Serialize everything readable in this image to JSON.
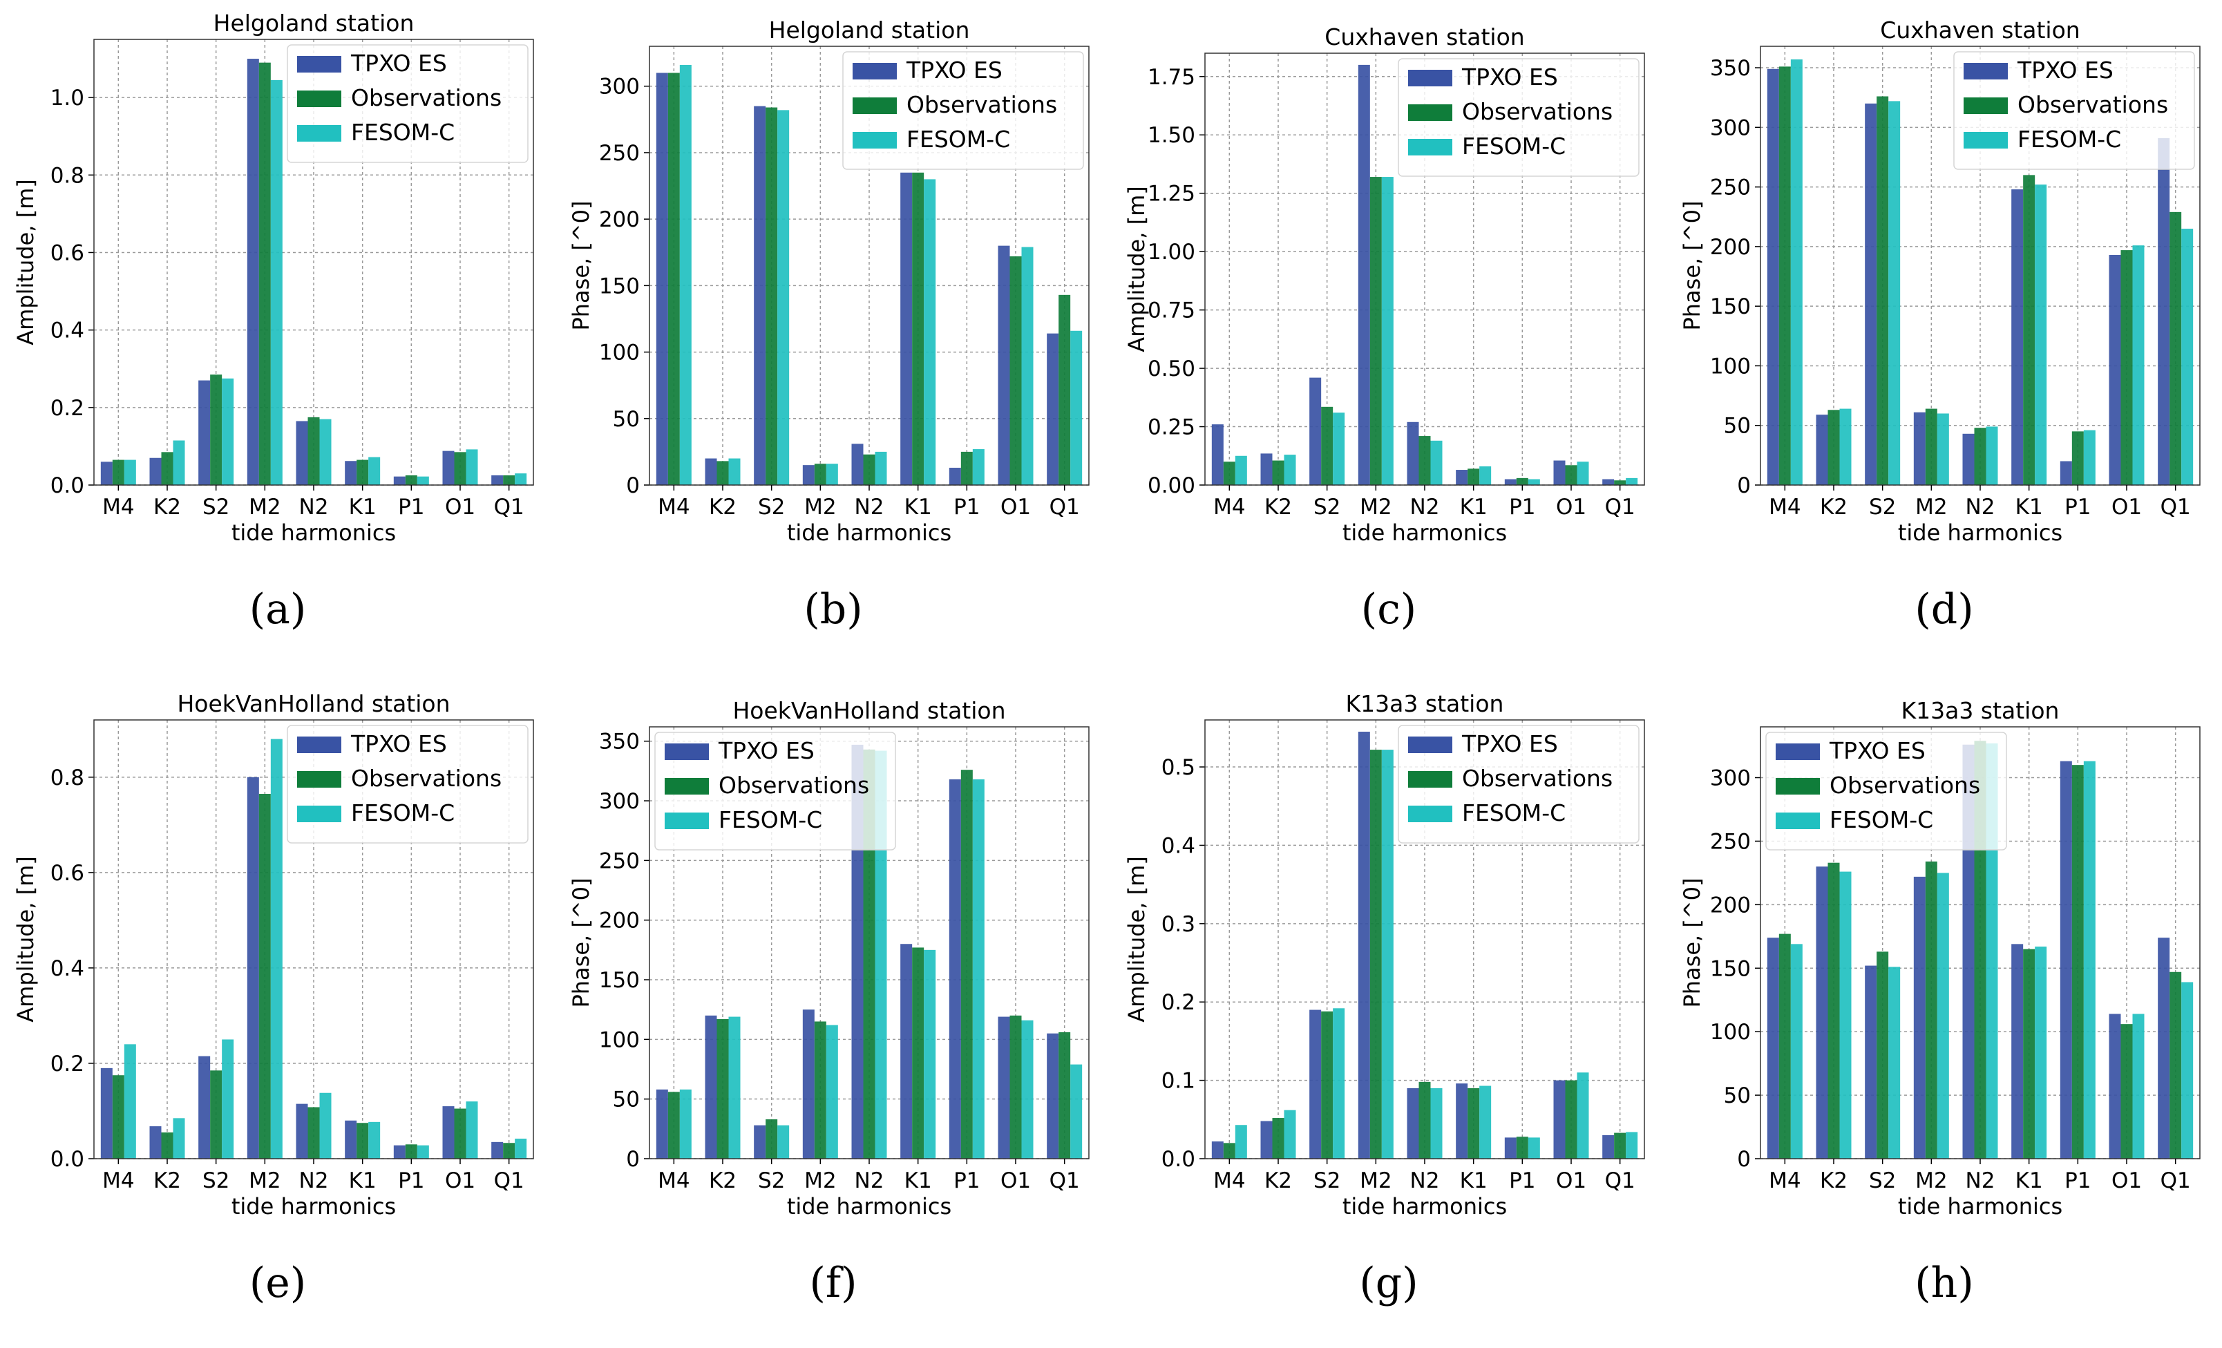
{
  "legend_labels": [
    "TPXO ES",
    "Observations",
    "FESOM-C"
  ],
  "colors": {
    "TPXO ES": "#3953a4",
    "Observations": "#0f7d3a",
    "FESOM-C": "#21c0c0"
  },
  "chart_data": [
    {
      "id": "a",
      "panel_label": "(a)",
      "type": "bar",
      "title": "Helgoland station",
      "xlabel": "tide harmonics",
      "ylabel": "Amplitude, [m]",
      "categories": [
        "M4",
        "K2",
        "S2",
        "M2",
        "N2",
        "K1",
        "P1",
        "O1",
        "Q1"
      ],
      "ylim": [
        0,
        1.15
      ],
      "yticks": [
        0,
        0.2,
        0.4,
        0.6,
        0.8,
        1.0
      ],
      "ytick_labels": [
        "0.0",
        "0.2",
        "0.4",
        "0.6",
        "0.8",
        "1.0"
      ],
      "series": [
        {
          "name": "TPXO ES",
          "values": [
            0.06,
            0.07,
            0.27,
            1.1,
            0.165,
            0.062,
            0.022,
            0.088,
            0.025
          ]
        },
        {
          "name": "Observations",
          "values": [
            0.065,
            0.085,
            0.285,
            1.09,
            0.175,
            0.065,
            0.025,
            0.085,
            0.025
          ]
        },
        {
          "name": "FESOM-C",
          "values": [
            0.065,
            0.115,
            0.275,
            1.045,
            0.17,
            0.072,
            0.022,
            0.092,
            0.03
          ]
        }
      ]
    },
    {
      "id": "b",
      "panel_label": "(b)",
      "type": "bar",
      "title": "Helgoland station",
      "xlabel": "tide harmonics",
      "ylabel": "Phase, [^0]",
      "categories": [
        "M4",
        "K2",
        "S2",
        "M2",
        "N2",
        "K1",
        "P1",
        "O1",
        "Q1"
      ],
      "ylim": [
        0,
        330
      ],
      "yticks": [
        0,
        50,
        100,
        150,
        200,
        250,
        300
      ],
      "ytick_labels": [
        "0",
        "50",
        "100",
        "150",
        "200",
        "250",
        "300"
      ],
      "series": [
        {
          "name": "TPXO ES",
          "values": [
            310,
            20,
            285,
            15,
            31,
            235,
            13,
            180,
            114
          ]
        },
        {
          "name": "Observations",
          "values": [
            310,
            18,
            284,
            16,
            23,
            235,
            25,
            172,
            143
          ]
        },
        {
          "name": "FESOM-C",
          "values": [
            316,
            20,
            282,
            16,
            25,
            230,
            27,
            179,
            116
          ]
        }
      ]
    },
    {
      "id": "c",
      "panel_label": "(c)",
      "type": "bar",
      "title": "Cuxhaven station",
      "xlabel": "tide harmonics",
      "ylabel": "Amplitude, [m]",
      "categories": [
        "M4",
        "K2",
        "S2",
        "M2",
        "N2",
        "K1",
        "P1",
        "O1",
        "Q1"
      ],
      "ylim": [
        0,
        1.85
      ],
      "yticks": [
        0,
        0.25,
        0.5,
        0.75,
        1.0,
        1.25,
        1.5,
        1.75
      ],
      "ytick_labels": [
        "0.00",
        "0.25",
        "0.50",
        "0.75",
        "1.00",
        "1.25",
        "1.50",
        "1.75"
      ],
      "series": [
        {
          "name": "TPXO ES",
          "values": [
            0.26,
            0.135,
            0.46,
            1.8,
            0.27,
            0.065,
            0.025,
            0.105,
            0.025
          ]
        },
        {
          "name": "Observations",
          "values": [
            0.1,
            0.105,
            0.335,
            1.32,
            0.21,
            0.07,
            0.03,
            0.085,
            0.02
          ]
        },
        {
          "name": "FESOM-C",
          "values": [
            0.125,
            0.13,
            0.31,
            1.32,
            0.19,
            0.08,
            0.025,
            0.1,
            0.03
          ]
        }
      ]
    },
    {
      "id": "d",
      "panel_label": "(d)",
      "type": "bar",
      "title": "Cuxhaven station",
      "xlabel": "tide harmonics",
      "ylabel": "Phase, [^0]",
      "categories": [
        "M4",
        "K2",
        "S2",
        "M2",
        "N2",
        "K1",
        "P1",
        "O1",
        "Q1"
      ],
      "ylim": [
        0,
        368
      ],
      "yticks": [
        0,
        50,
        100,
        150,
        200,
        250,
        300,
        350
      ],
      "ytick_labels": [
        "0",
        "50",
        "100",
        "150",
        "200",
        "250",
        "300",
        "350"
      ],
      "series": [
        {
          "name": "TPXO ES",
          "values": [
            349,
            59,
            320,
            61,
            43,
            248,
            20,
            193,
            291
          ]
        },
        {
          "name": "Observations",
          "values": [
            351,
            63,
            326,
            64,
            48,
            260,
            45,
            197,
            229
          ]
        },
        {
          "name": "FESOM-C",
          "values": [
            357,
            64,
            322,
            60,
            49,
            252,
            46,
            201,
            215
          ]
        }
      ]
    },
    {
      "id": "e",
      "panel_label": "(e)",
      "type": "bar",
      "title": "HoekVanHolland station",
      "xlabel": "tide harmonics",
      "ylabel": "Amplitude, [m]",
      "categories": [
        "M4",
        "K2",
        "S2",
        "M2",
        "N2",
        "K1",
        "P1",
        "O1",
        "Q1"
      ],
      "ylim": [
        0,
        0.92
      ],
      "yticks": [
        0,
        0.2,
        0.4,
        0.6,
        0.8
      ],
      "ytick_labels": [
        "0.0",
        "0.2",
        "0.4",
        "0.6",
        "0.8"
      ],
      "series": [
        {
          "name": "TPXO ES",
          "values": [
            0.19,
            0.068,
            0.215,
            0.8,
            0.115,
            0.08,
            0.028,
            0.11,
            0.035
          ]
        },
        {
          "name": "Observations",
          "values": [
            0.175,
            0.055,
            0.185,
            0.765,
            0.108,
            0.075,
            0.03,
            0.105,
            0.033
          ]
        },
        {
          "name": "FESOM-C",
          "values": [
            0.24,
            0.085,
            0.25,
            0.88,
            0.138,
            0.077,
            0.028,
            0.12,
            0.042
          ]
        }
      ]
    },
    {
      "id": "f",
      "panel_label": "(f)",
      "type": "bar",
      "title": "HoekVanHolland station",
      "xlabel": "tide harmonics",
      "ylabel": "Phase, [^0]",
      "categories": [
        "M4",
        "K2",
        "S2",
        "M2",
        "N2",
        "K1",
        "P1",
        "O1",
        "Q1"
      ],
      "ylim": [
        0,
        362
      ],
      "yticks": [
        0,
        50,
        100,
        150,
        200,
        250,
        300,
        350
      ],
      "ytick_labels": [
        "0",
        "50",
        "100",
        "150",
        "200",
        "250",
        "300",
        "350"
      ],
      "series": [
        {
          "name": "TPXO ES",
          "values": [
            58,
            120,
            28,
            125,
            347,
            180,
            318,
            119,
            105
          ]
        },
        {
          "name": "Observations",
          "values": [
            56,
            117,
            33,
            115,
            343,
            177,
            326,
            120,
            106
          ]
        },
        {
          "name": "FESOM-C",
          "values": [
            58,
            119,
            28,
            112,
            342,
            175,
            318,
            116,
            79
          ]
        }
      ]
    },
    {
      "id": "g",
      "panel_label": "(g)",
      "type": "bar",
      "title": "K13a3 station",
      "xlabel": "tide harmonics",
      "ylabel": "Amplitude, [m]",
      "categories": [
        "M4",
        "K2",
        "S2",
        "M2",
        "N2",
        "K1",
        "P1",
        "O1",
        "Q1"
      ],
      "ylim": [
        0,
        0.56
      ],
      "yticks": [
        0,
        0.1,
        0.2,
        0.3,
        0.4,
        0.5
      ],
      "ytick_labels": [
        "0.0",
        "0.1",
        "0.2",
        "0.3",
        "0.4",
        "0.5"
      ],
      "series": [
        {
          "name": "TPXO ES",
          "values": [
            0.022,
            0.048,
            0.19,
            0.545,
            0.09,
            0.096,
            0.027,
            0.1,
            0.03
          ]
        },
        {
          "name": "Observations",
          "values": [
            0.02,
            0.052,
            0.188,
            0.522,
            0.098,
            0.09,
            0.028,
            0.1,
            0.033
          ]
        },
        {
          "name": "FESOM-C",
          "values": [
            0.043,
            0.062,
            0.192,
            0.522,
            0.09,
            0.093,
            0.027,
            0.11,
            0.034
          ]
        }
      ]
    },
    {
      "id": "h",
      "panel_label": "(h)",
      "type": "bar",
      "title": "K13a3 station",
      "xlabel": "tide harmonics",
      "ylabel": "Phase, [^0]",
      "categories": [
        "M4",
        "K2",
        "S2",
        "M2",
        "N2",
        "K1",
        "P1",
        "O1",
        "Q1"
      ],
      "ylim": [
        0,
        340
      ],
      "yticks": [
        0,
        50,
        100,
        150,
        200,
        250,
        300
      ],
      "ytick_labels": [
        "0",
        "50",
        "100",
        "150",
        "200",
        "250",
        "300"
      ],
      "series": [
        {
          "name": "TPXO ES",
          "values": [
            174,
            230,
            152,
            222,
            326,
            169,
            313,
            114,
            174
          ]
        },
        {
          "name": "Observations",
          "values": [
            177,
            233,
            163,
            234,
            329,
            165,
            310,
            106,
            147
          ]
        },
        {
          "name": "FESOM-C",
          "values": [
            169,
            226,
            151,
            225,
            327,
            167,
            313,
            114,
            139
          ]
        }
      ]
    }
  ]
}
